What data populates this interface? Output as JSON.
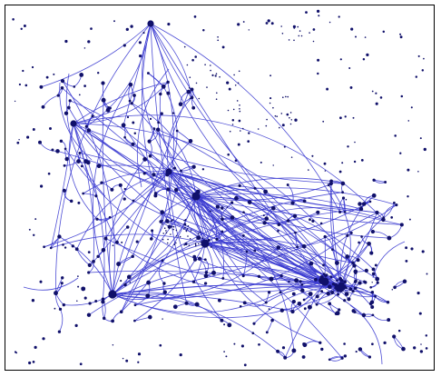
{
  "colors": {
    "background": "#ffffff",
    "frame": "#000000",
    "edge": "#3a3ad0",
    "node": "#10106a"
  },
  "graph": {
    "type": "network-graph",
    "layout": "force-directed",
    "hubs": [
      {
        "id": "h1",
        "degree": 34
      },
      {
        "id": "h2",
        "degree": 22
      },
      {
        "id": "h3",
        "degree": 25
      },
      {
        "id": "h4",
        "degree": 18
      },
      {
        "id": "h5",
        "degree": 28
      },
      {
        "id": "h6",
        "degree": 12
      },
      {
        "id": "h7",
        "degree": 14
      },
      {
        "id": "h8",
        "degree": 20
      }
    ],
    "has_isolated_nodes": true,
    "has_text_labels": false
  }
}
